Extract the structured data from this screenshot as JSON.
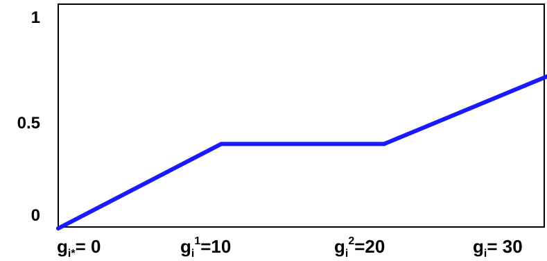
{
  "chart_data": {
    "type": "line",
    "title": "",
    "xlabel": "",
    "ylabel": "",
    "xlim": [
      0,
      30
    ],
    "ylim": [
      0,
      1
    ],
    "grid": false,
    "legend": "none",
    "line_color": "#1a1aff",
    "y_ticks": [
      {
        "value": 0,
        "label": "0"
      },
      {
        "value": 0.5,
        "label": "0.5"
      },
      {
        "value": 1,
        "label": "1"
      }
    ],
    "x_ticks": [
      {
        "value": 0,
        "base": "g",
        "sub": "i*",
        "sup": "",
        "rest": "= 0"
      },
      {
        "value": 10,
        "base": "g",
        "sub": "i",
        "sup": "1",
        "rest": "=10"
      },
      {
        "value": 20,
        "base": "g",
        "sub": "i",
        "sup": "2",
        "rest": "=20"
      },
      {
        "value": 30,
        "base": "g",
        "sub": "i",
        "sup": "",
        "rest": "= 30"
      }
    ],
    "series": [
      {
        "x": [
          0,
          10,
          20,
          30
        ],
        "y": [
          0,
          0.4,
          0.4,
          0.72
        ]
      }
    ]
  }
}
